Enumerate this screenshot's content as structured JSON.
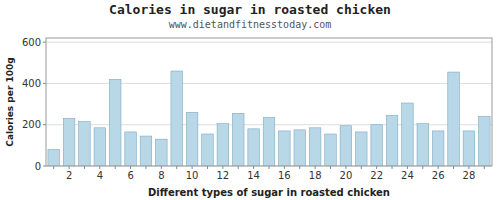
{
  "chart_data": {
    "type": "bar",
    "title": "Calories in sugar in roasted chicken",
    "subtitle": "www.dietandfitnesstoday.com",
    "xlabel": "Different types of sugar in roasted chicken",
    "ylabel": "Calories per 100g",
    "categories": [
      null,
      "2",
      null,
      "4",
      null,
      "6",
      null,
      "8",
      null,
      "10",
      null,
      "12",
      null,
      "14",
      null,
      "16",
      null,
      "18",
      null,
      "20",
      null,
      "22",
      null,
      "24",
      null,
      "26",
      null,
      "28",
      null
    ],
    "values": [
      80,
      230,
      215,
      185,
      420,
      165,
      145,
      130,
      460,
      260,
      155,
      205,
      255,
      180,
      235,
      170,
      175,
      185,
      155,
      195,
      165,
      200,
      245,
      305,
      205,
      170,
      455,
      170,
      240
    ],
    "color": "#b8d8e8",
    "ylim": [
      0,
      620
    ],
    "yticks": [
      0,
      200,
      400,
      600
    ],
    "grid": true
  }
}
